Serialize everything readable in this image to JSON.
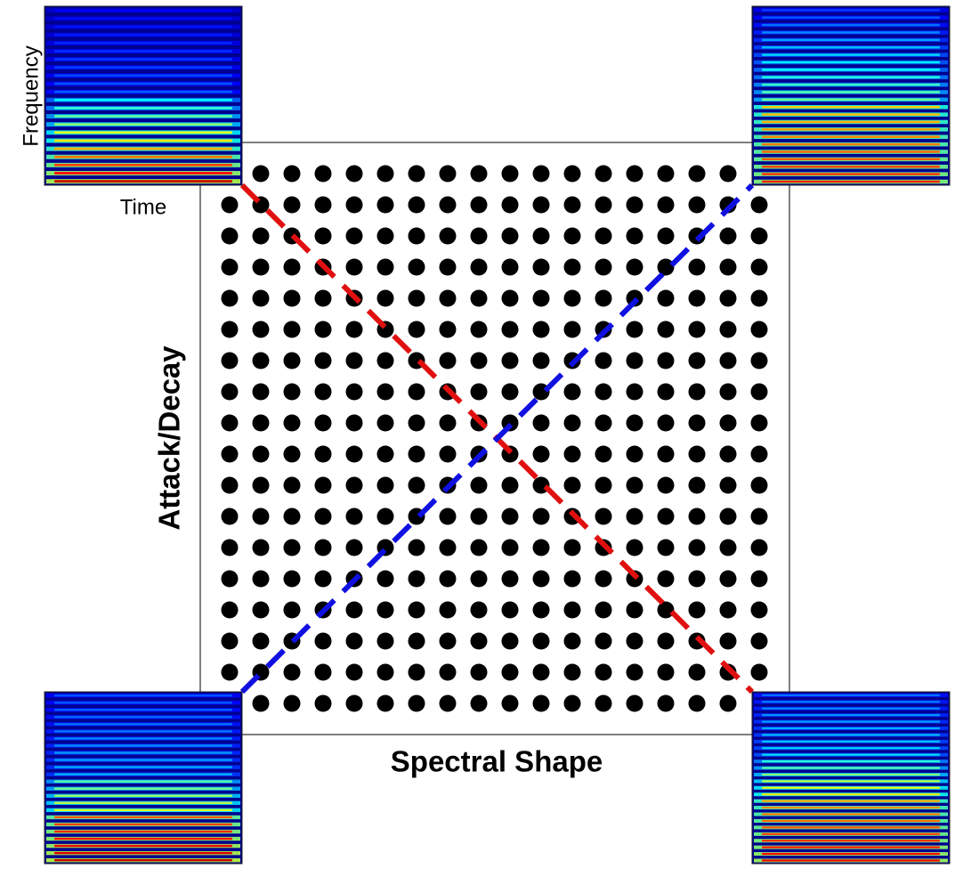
{
  "labels": {
    "frequency": "Frequency",
    "time": "Time",
    "y_axis": "Attack/Decay",
    "x_axis": "Spectral Shape"
  }
}
